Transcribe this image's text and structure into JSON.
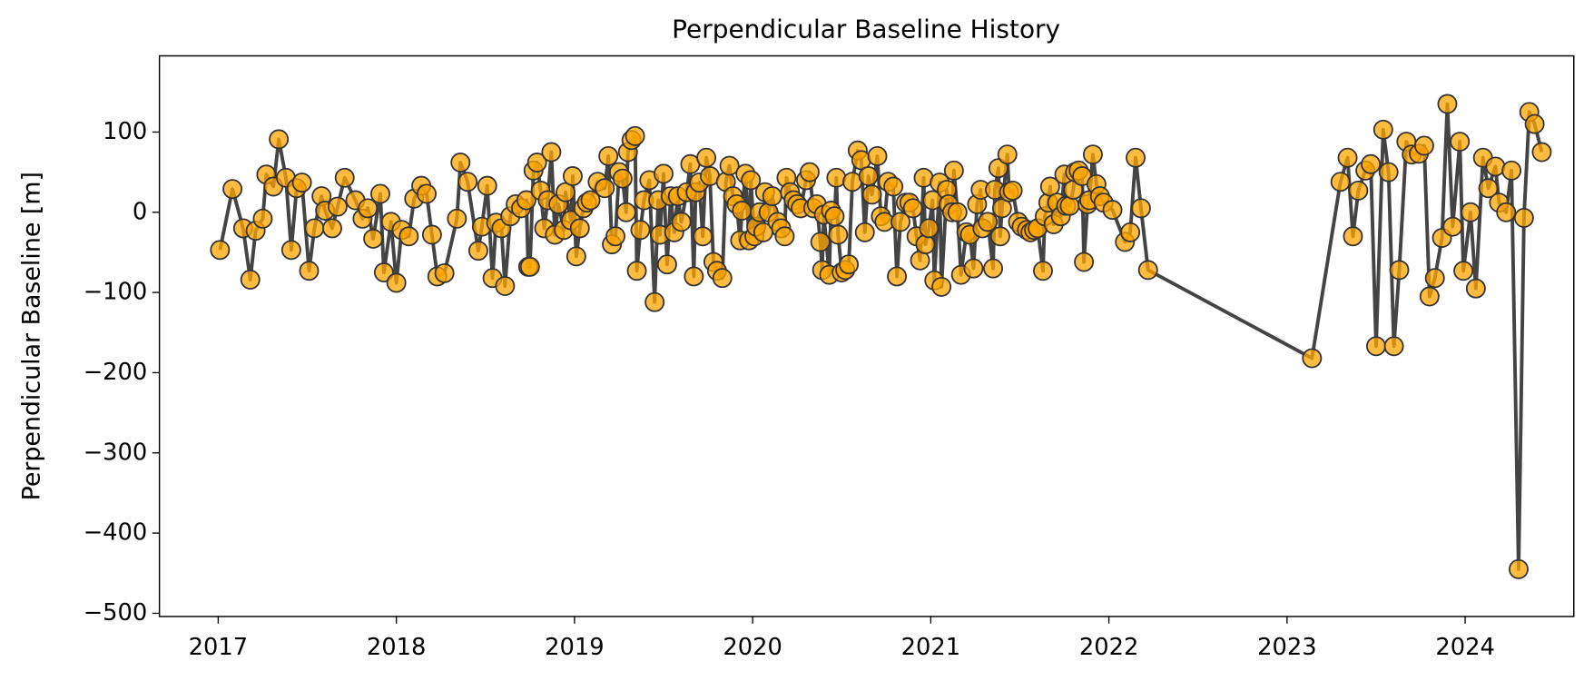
{
  "chart_data": {
    "type": "line",
    "title": "Perpendicular Baseline History",
    "ylabel": "Perpendicular Baseline [m]",
    "line_color": "#444444",
    "marker_color": "#ffa500",
    "marker_edge": "#333333",
    "x": [
      2017.01,
      2017.08,
      2017.14,
      2017.18,
      2017.21,
      2017.25,
      2017.27,
      2017.31,
      2017.34,
      2017.38,
      2017.41,
      2017.44,
      2017.47,
      2017.51,
      2017.54,
      2017.58,
      2017.6,
      2017.64,
      2017.67,
      2017.71,
      2017.77,
      2017.81,
      2017.84,
      2017.87,
      2017.91,
      2017.93,
      2017.97,
      2018.0,
      2018.03,
      2018.07,
      2018.1,
      2018.14,
      2018.17,
      2018.2,
      2018.23,
      2018.27,
      2018.34,
      2018.36,
      2018.4,
      2018.46,
      2018.48,
      2018.51,
      2018.54,
      2018.56,
      2018.59,
      2018.61,
      2018.64,
      2018.67,
      2018.7,
      2018.73,
      2018.74,
      2018.75,
      2018.77,
      2018.79,
      2018.81,
      2018.83,
      2018.85,
      2018.87,
      2018.89,
      2018.91,
      2018.94,
      2018.95,
      2018.98,
      2018.99,
      2019.01,
      2019.03,
      2019.05,
      2019.07,
      2019.09,
      2019.13,
      2019.17,
      2019.19,
      2019.21,
      2019.23,
      2019.25,
      2019.27,
      2019.29,
      2019.3,
      2019.32,
      2019.34,
      2019.35,
      2019.37,
      2019.39,
      2019.42,
      2019.45,
      2019.47,
      2019.48,
      2019.5,
      2019.52,
      2019.54,
      2019.56,
      2019.58,
      2019.6,
      2019.63,
      2019.65,
      2019.67,
      2019.68,
      2019.7,
      2019.72,
      2019.74,
      2019.76,
      2019.78,
      2019.8,
      2019.83,
      2019.85,
      2019.87,
      2019.89,
      2019.91,
      2019.93,
      2019.94,
      2019.96,
      2019.98,
      2019.99,
      2020.01,
      2020.02,
      2020.04,
      2020.06,
      2020.07,
      2020.09,
      2020.11,
      2020.14,
      2020.16,
      2020.18,
      2020.19,
      2020.21,
      2020.23,
      2020.25,
      2020.27,
      2020.3,
      2020.32,
      2020.34,
      2020.36,
      2020.38,
      2020.39,
      2020.4,
      2020.43,
      2020.44,
      2020.46,
      2020.47,
      2020.48,
      2020.5,
      2020.52,
      2020.54,
      2020.56,
      2020.59,
      2020.61,
      2020.63,
      2020.65,
      2020.67,
      2020.7,
      2020.72,
      2020.74,
      2020.76,
      2020.79,
      2020.81,
      2020.83,
      2020.86,
      2020.88,
      2020.9,
      2020.92,
      2020.94,
      2020.96,
      2020.97,
      2020.99,
      2021.01,
      2021.02,
      2021.05,
      2021.06,
      2021.09,
      2021.1,
      2021.12,
      2021.13,
      2021.15,
      2021.17,
      2021.2,
      2021.22,
      2021.24,
      2021.26,
      2021.28,
      2021.29,
      2021.32,
      2021.35,
      2021.36,
      2021.38,
      2021.39,
      2021.4,
      2021.43,
      2021.44,
      2021.46,
      2021.49,
      2021.51,
      2021.54,
      2021.56,
      2021.58,
      2021.6,
      2021.63,
      2021.64,
      2021.66,
      2021.67,
      2021.69,
      2021.71,
      2021.73,
      2021.75,
      2021.76,
      2021.78,
      2021.8,
      2021.81,
      2021.83,
      2021.85,
      2021.86,
      2021.88,
      2021.89,
      2021.91,
      2021.93,
      2021.95,
      2021.97,
      2022.02,
      2022.09,
      2022.12,
      2022.15,
      2022.18,
      2022.22,
      2023.14,
      2023.3,
      2023.34,
      2023.37,
      2023.4,
      2023.44,
      2023.47,
      2023.5,
      2023.54,
      2023.57,
      2023.6,
      2023.63,
      2023.67,
      2023.7,
      2023.74,
      2023.77,
      2023.8,
      2023.83,
      2023.87,
      2023.9,
      2023.93,
      2023.97,
      2023.99,
      2024.03,
      2024.06,
      2024.1,
      2024.13,
      2024.17,
      2024.19,
      2024.23,
      2024.26,
      2024.3,
      2024.33,
      2024.36,
      2024.39,
      2024.43
    ],
    "values": [
      -47,
      29,
      -20,
      -84,
      -23,
      -8,
      47,
      32,
      91,
      43,
      -47,
      30,
      37,
      -73,
      -20,
      20,
      2,
      -20,
      7,
      43,
      15,
      -8,
      5,
      -33,
      23,
      -75,
      -12,
      -88,
      -22,
      -30,
      17,
      33,
      23,
      -28,
      -80,
      -76,
      -8,
      62,
      38,
      -48,
      -18,
      33,
      -82,
      -13,
      -20,
      -92,
      -5,
      10,
      5,
      15,
      -68,
      -68,
      52,
      62,
      27,
      -20,
      15,
      75,
      -28,
      10,
      -22,
      25,
      -10,
      45,
      -55,
      -20,
      5,
      12,
      15,
      38,
      30,
      70,
      -40,
      -30,
      50,
      42,
      0,
      75,
      90,
      95,
      -73,
      -22,
      15,
      40,
      -112,
      15,
      -28,
      48,
      -65,
      20,
      -25,
      20,
      -12,
      25,
      60,
      -80,
      25,
      37,
      -30,
      68,
      45,
      -62,
      -73,
      -82,
      38,
      58,
      20,
      10,
      -35,
      2,
      48,
      -35,
      40,
      -30,
      -18,
      0,
      -25,
      25,
      0,
      20,
      -12,
      -20,
      -30,
      43,
      25,
      15,
      10,
      5,
      40,
      50,
      5,
      10,
      -37,
      -72,
      -3,
      -78,
      2,
      -5,
      43,
      -28,
      -75,
      -72,
      -65,
      38,
      77,
      65,
      -25,
      45,
      22,
      70,
      -5,
      -12,
      38,
      32,
      -80,
      -12,
      12,
      12,
      5,
      -30,
      -60,
      43,
      -40,
      -20,
      15,
      -85,
      37,
      -93,
      28,
      10,
      0,
      52,
      0,
      -78,
      -25,
      -28,
      -70,
      10,
      28,
      -20,
      -12,
      -70,
      28,
      55,
      -30,
      5,
      72,
      25,
      27,
      -12,
      -18,
      -22,
      -25,
      -22,
      -20,
      -73,
      -5,
      12,
      32,
      -15,
      12,
      -5,
      47,
      8,
      8,
      28,
      50,
      52,
      45,
      -62,
      10,
      15,
      72,
      35,
      20,
      12,
      3,
      -37,
      -25,
      68,
      5,
      -72,
      -182,
      38,
      68,
      -30,
      27,
      52,
      60,
      -167,
      103,
      50,
      -167,
      -72,
      88,
      72,
      73,
      83,
      -105,
      -82,
      -32,
      135,
      -18,
      88,
      -73,
      0,
      -95,
      68,
      30,
      57,
      12,
      0,
      52,
      -445,
      -7,
      125,
      110,
      75
    ],
    "xlim": [
      2016.67,
      2024.61
    ],
    "xticks": [
      2017,
      2018,
      2019,
      2020,
      2021,
      2022,
      2023,
      2024
    ],
    "ylim": [
      -504,
      195
    ],
    "yticks": [
      {
        "value": -500,
        "label": "−500"
      },
      {
        "value": -400,
        "label": "−400"
      },
      {
        "value": -300,
        "label": "−300"
      },
      {
        "value": -200,
        "label": "−200"
      },
      {
        "value": -100,
        "label": "−100"
      },
      0,
      100
    ],
    "grid": false
  }
}
